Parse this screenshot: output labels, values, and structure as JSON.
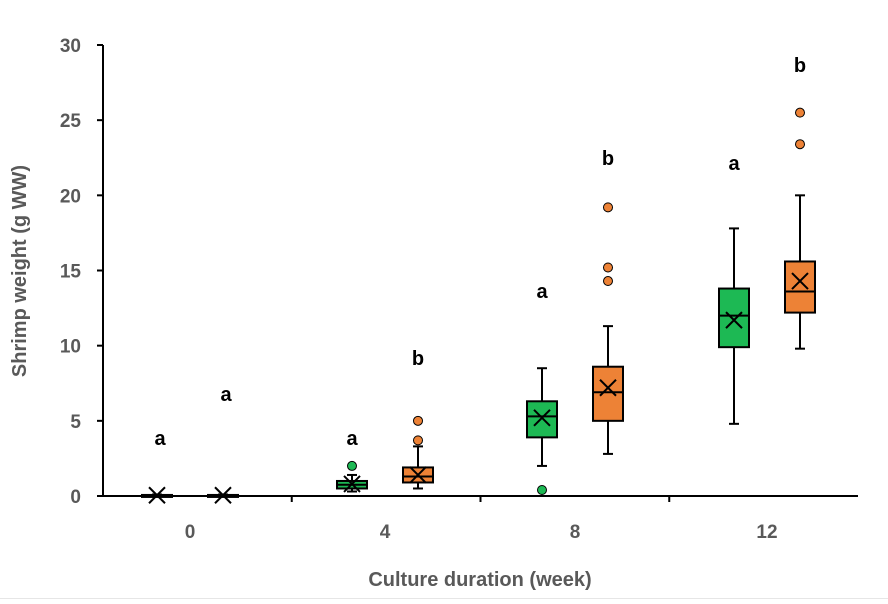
{
  "chart_data": {
    "type": "box",
    "title": "",
    "xlabel": "Culture duration (week)",
    "ylabel": "Shrimp weight (g WW)",
    "ylim": [
      0,
      30
    ],
    "yticks": [
      "0",
      "5",
      "10",
      "15",
      "20",
      "25",
      "30"
    ],
    "categories": [
      "0",
      "4",
      "8",
      "12"
    ],
    "grid": false,
    "colors": {
      "green": "#1db954",
      "orange": "#ed8236",
      "axis_text": "#595959"
    },
    "series": [
      {
        "name": "green",
        "color": "#1db954",
        "boxes": [
          {
            "min": 0.02,
            "q1": 0.03,
            "median": 0.05,
            "q3": 0.07,
            "max": 0.1,
            "mean": 0.05,
            "outliers": [],
            "letter": "a"
          },
          {
            "min": 0.3,
            "q1": 0.5,
            "median": 0.75,
            "q3": 1.0,
            "max": 1.4,
            "mean": 0.8,
            "outliers": [
              2.0
            ],
            "letter": "a"
          },
          {
            "min": 2.0,
            "q1": 3.9,
            "median": 5.3,
            "q3": 6.3,
            "max": 8.5,
            "mean": 5.2,
            "outliers": [
              0.4
            ],
            "letter": "a"
          },
          {
            "min": 4.8,
            "q1": 9.9,
            "median": 12.0,
            "q3": 13.8,
            "max": 17.8,
            "mean": 11.7,
            "outliers": [],
            "letter": "a"
          }
        ]
      },
      {
        "name": "orange",
        "color": "#ed8236",
        "boxes": [
          {
            "min": 0.02,
            "q1": 0.03,
            "median": 0.05,
            "q3": 0.07,
            "max": 0.1,
            "mean": 0.05,
            "outliers": [],
            "letter": "a"
          },
          {
            "min": 0.5,
            "q1": 0.9,
            "median": 1.3,
            "q3": 1.9,
            "max": 3.3,
            "mean": 1.4,
            "outliers": [
              3.7,
              5.0
            ],
            "letter": "b"
          },
          {
            "min": 2.8,
            "q1": 5.0,
            "median": 6.9,
            "q3": 8.6,
            "max": 11.3,
            "mean": 7.2,
            "outliers": [
              14.3,
              15.2,
              19.2
            ],
            "letter": "b"
          },
          {
            "min": 9.8,
            "q1": 12.2,
            "median": 13.6,
            "q3": 15.6,
            "max": 20.0,
            "mean": 14.3,
            "outliers": [
              23.4,
              25.5
            ],
            "letter": "b"
          }
        ]
      }
    ]
  }
}
